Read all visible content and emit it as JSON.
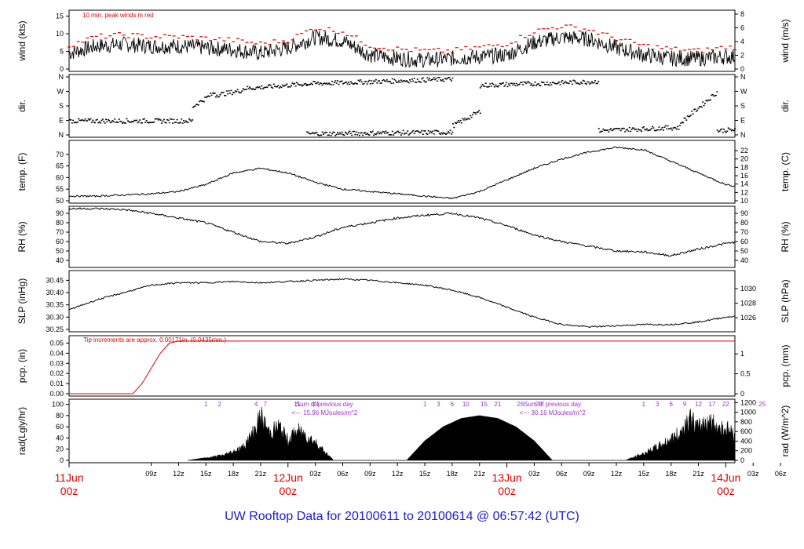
{
  "footer": {
    "title": "UW Rooftop Data for 20100611  to  20100614 @ 06:57:42  (UTC)"
  },
  "colors": {
    "ink": "#000000",
    "red": "#e00000",
    "purple": "#9b30d9",
    "blue": "#1a1ad6"
  },
  "chart_data": [
    {
      "type": "line",
      "id": "wind",
      "ylabel_left": "wind (kts)",
      "ylabel_right": "wind (m/s)",
      "ylim": [
        0,
        16
      ],
      "yticks_left": [
        0,
        5,
        10,
        15
      ],
      "yticks_right": [
        0,
        2,
        4,
        6,
        8
      ],
      "right_unit_factor": 0.5144,
      "annotation": "10 min. peak winds in red",
      "x_hours_utc": [
        0,
        3,
        6,
        9,
        12,
        15,
        18,
        21,
        24,
        27,
        30,
        33,
        36,
        39,
        42,
        45,
        48,
        51,
        54,
        57,
        60,
        63,
        66,
        69,
        72
      ],
      "series": [
        {
          "values": [
            4.5,
            6.5,
            7,
            6.5,
            6.5,
            6,
            5.5,
            4.5,
            6,
            9,
            8,
            4,
            3,
            2.5,
            3,
            3.5,
            4,
            7.5,
            9,
            8.5,
            6,
            4,
            3,
            3,
            3.5
          ]
        },
        {
          "values": [
            6.5,
            9,
            9.5,
            9,
            9,
            8.5,
            8,
            7,
            8,
            11.5,
            10.5,
            6.5,
            5.5,
            5,
            5,
            6,
            7,
            10.5,
            12,
            11,
            8.5,
            6.5,
            5.5,
            5,
            6
          ]
        }
      ]
    },
    {
      "type": "scatter",
      "id": "dir",
      "ylabel_left": "dir.",
      "ylabel_right": "dir.",
      "ylim": [
        0,
        360
      ],
      "ytick_labels": [
        "N",
        "E",
        "S",
        "W",
        "N"
      ],
      "segments": [
        {
          "x": [
            0,
            13.5
          ],
          "y": [
            90,
            90
          ]
        },
        {
          "x": [
            13.5,
            16
          ],
          "y": [
            180,
            270
          ]
        },
        {
          "x": [
            16,
            19
          ],
          "y": [
            250,
            280
          ]
        },
        {
          "x": [
            19,
            26
          ],
          "y": [
            290,
            320
          ]
        },
        {
          "x": [
            26,
            42
          ],
          "y": [
            320,
            350
          ]
        },
        {
          "x": [
            26,
            42
          ],
          "y": [
            10,
            20
          ]
        },
        {
          "x": [
            42,
            45
          ],
          "y": [
            60,
            150
          ]
        },
        {
          "x": [
            45,
            58
          ],
          "y": [
            310,
            335
          ]
        },
        {
          "x": [
            58,
            67
          ],
          "y": [
            30,
            50
          ]
        },
        {
          "x": [
            67,
            71
          ],
          "y": [
            80,
            270
          ]
        },
        {
          "x": [
            71,
            84
          ],
          "y": [
            30,
            60
          ]
        }
      ]
    },
    {
      "type": "line",
      "id": "temp",
      "ylabel_left": "temp. (F)",
      "ylabel_right": "temp. (C)",
      "ylim": [
        50,
        75
      ],
      "yticks_left": [
        50,
        55,
        60,
        65,
        70
      ],
      "yticks_right": [
        10,
        12,
        14,
        16,
        18,
        20,
        22
      ],
      "x_hours_utc": [
        0,
        3,
        6,
        9,
        12,
        15,
        18,
        21,
        24,
        27,
        30,
        33,
        36,
        39,
        42,
        45,
        48,
        51,
        54,
        57,
        60,
        63,
        66,
        69,
        72,
        75,
        78,
        81,
        84
      ],
      "values": [
        54,
        53,
        52,
        52,
        52.5,
        53,
        54,
        57,
        62,
        64,
        62,
        58,
        55,
        54,
        53,
        52,
        51,
        54,
        59,
        64,
        68,
        71,
        73,
        72,
        67,
        62,
        57,
        55,
        55
      ]
    },
    {
      "type": "line",
      "id": "rh",
      "ylabel_left": "RH (%)",
      "ylabel_right": "RH (%)",
      "ylim": [
        35,
        95
      ],
      "yticks": [
        40,
        50,
        60,
        70,
        80,
        90
      ],
      "x_hours_utc": [
        0,
        3,
        6,
        9,
        12,
        15,
        18,
        21,
        24,
        27,
        30,
        33,
        36,
        39,
        42,
        45,
        48,
        51,
        54,
        57,
        60,
        63,
        66,
        69,
        72,
        75,
        78,
        81,
        84
      ],
      "values": [
        92,
        93,
        95,
        95,
        94,
        90,
        85,
        80,
        70,
        60,
        58,
        65,
        75,
        80,
        85,
        88,
        90,
        85,
        77,
        67,
        60,
        55,
        50,
        49,
        45,
        52,
        58,
        62,
        60
      ]
    },
    {
      "type": "line",
      "id": "slp",
      "ylabel_left": "SLP (inHg)",
      "ylabel_right": "SLP (hPa)",
      "ylim": [
        30.25,
        30.48
      ],
      "yticks_left": [
        30.25,
        30.3,
        30.35,
        30.4,
        30.45
      ],
      "yticks_right": [
        1026,
        1028,
        1030
      ],
      "x_hours_utc": [
        0,
        3,
        6,
        9,
        12,
        15,
        18,
        21,
        24,
        27,
        30,
        33,
        36,
        39,
        42,
        45,
        48,
        51,
        54,
        57,
        60,
        63,
        66,
        69,
        72,
        75,
        78,
        81,
        84
      ],
      "values": [
        30.28,
        30.3,
        30.33,
        30.37,
        30.4,
        30.43,
        30.44,
        30.44,
        30.445,
        30.44,
        30.445,
        30.45,
        30.455,
        30.45,
        30.44,
        30.43,
        30.41,
        30.38,
        30.34,
        30.3,
        30.27,
        30.26,
        30.265,
        30.27,
        30.27,
        30.28,
        30.3,
        30.31,
        30.31
      ]
    },
    {
      "type": "line",
      "id": "pcp",
      "ylabel_left": "pcp. (in)",
      "ylabel_right": "pcp. (mm)",
      "ylim": [
        0,
        0.055
      ],
      "yticks_left": [
        0.0,
        0.01,
        0.02,
        0.03,
        0.04,
        0.05
      ],
      "yticks_right": [
        0,
        0.5,
        1
      ],
      "annotation": "Tip increments are approx. 0.00171in. (0.0435mm.)",
      "x_hours_utc": [
        0,
        3,
        6,
        7,
        8,
        9,
        10,
        11,
        12,
        84
      ],
      "values": [
        0,
        0,
        0,
        0.0,
        0.01,
        0.025,
        0.04,
        0.05,
        0.052,
        0.052
      ]
    },
    {
      "type": "area",
      "id": "rad",
      "ylabel_left": "rad(Lgly/hr)",
      "ylabel_right": "rad (W/m^2)",
      "ylim": [
        0,
        105
      ],
      "yticks_left": [
        0,
        20,
        40,
        60,
        80,
        100
      ],
      "yticks_right": [
        0,
        200,
        400,
        600,
        800,
        1000,
        1200
      ],
      "day_totals": [
        {
          "label": "Sum of previous day",
          "value": "<--- 15.96 MJoules/m^2"
        },
        {
          "label": "Sum of previous day",
          "value": "<--- 30.16 MJoules/m^2"
        }
      ],
      "uv_labels": [
        {
          "hour": 15,
          "text": "1"
        },
        {
          "hour": 16.5,
          "text": "2"
        },
        {
          "hour": 20.5,
          "text": "4"
        },
        {
          "hour": 21.5,
          "text": "7"
        },
        {
          "hour": 25,
          "text": "11"
        },
        {
          "hour": 27,
          "text": "14"
        },
        {
          "hour": 39,
          "text": "1"
        },
        {
          "hour": 40.5,
          "text": "3"
        },
        {
          "hour": 42,
          "text": "6"
        },
        {
          "hour": 43.5,
          "text": "10"
        },
        {
          "hour": 45.5,
          "text": "15"
        },
        {
          "hour": 47,
          "text": "21"
        },
        {
          "hour": 49.5,
          "text": "26"
        },
        {
          "hour": 51.5,
          "text": "29"
        },
        {
          "hour": 63,
          "text": "1"
        },
        {
          "hour": 64.5,
          "text": "3"
        },
        {
          "hour": 66,
          "text": "6"
        },
        {
          "hour": 67.5,
          "text": "9"
        },
        {
          "hour": 69,
          "text": "12"
        },
        {
          "hour": 70.5,
          "text": "17"
        },
        {
          "hour": 72,
          "text": "22"
        },
        {
          "hour": 76,
          "text": "25"
        }
      ],
      "x_hours_utc": [
        13,
        15,
        17,
        18,
        19,
        20,
        21,
        22,
        23,
        24,
        25,
        26,
        27,
        28,
        29,
        37,
        39,
        41,
        43,
        45,
        47,
        49,
        51,
        53,
        61,
        63,
        65,
        67,
        68,
        69,
        70,
        71,
        72,
        73,
        74,
        75,
        76,
        77
      ],
      "values": [
        0,
        5,
        12,
        20,
        28,
        55,
        95,
        60,
        75,
        45,
        65,
        55,
        40,
        20,
        0,
        0,
        35,
        60,
        75,
        80,
        75,
        60,
        35,
        0,
        0,
        15,
        35,
        60,
        95,
        70,
        90,
        75,
        70,
        60,
        30,
        15,
        10,
        0
      ]
    }
  ],
  "x_axis": {
    "hour_labels": [
      {
        "hour": 9,
        "text": "09z"
      },
      {
        "hour": 12,
        "text": "12z"
      },
      {
        "hour": 15,
        "text": "15z"
      },
      {
        "hour": 18,
        "text": "18z"
      },
      {
        "hour": 21,
        "text": "21z"
      },
      {
        "hour": 27,
        "text": "03z"
      },
      {
        "hour": 30,
        "text": "06z"
      },
      {
        "hour": 33,
        "text": "09z"
      },
      {
        "hour": 36,
        "text": "12z"
      },
      {
        "hour": 39,
        "text": "15z"
      },
      {
        "hour": 42,
        "text": "18z"
      },
      {
        "hour": 45,
        "text": "21z"
      },
      {
        "hour": 51,
        "text": "03z"
      },
      {
        "hour": 54,
        "text": "06z"
      },
      {
        "hour": 57,
        "text": "09z"
      },
      {
        "hour": 60,
        "text": "12z"
      },
      {
        "hour": 63,
        "text": "15z"
      },
      {
        "hour": 66,
        "text": "18z"
      },
      {
        "hour": 69,
        "text": "21z"
      },
      {
        "hour": 75,
        "text": "03z"
      },
      {
        "hour": 78,
        "text": "06z"
      }
    ],
    "day_labels": [
      {
        "hour": 0,
        "date": "11Jun",
        "zulu": "00z"
      },
      {
        "hour": 24,
        "date": "12Jun",
        "zulu": "00z"
      },
      {
        "hour": 48,
        "date": "13Jun",
        "zulu": "00z"
      },
      {
        "hour": 72,
        "date": "14Jun",
        "zulu": "00z"
      }
    ],
    "range_hours": [
      6,
      79
    ]
  }
}
